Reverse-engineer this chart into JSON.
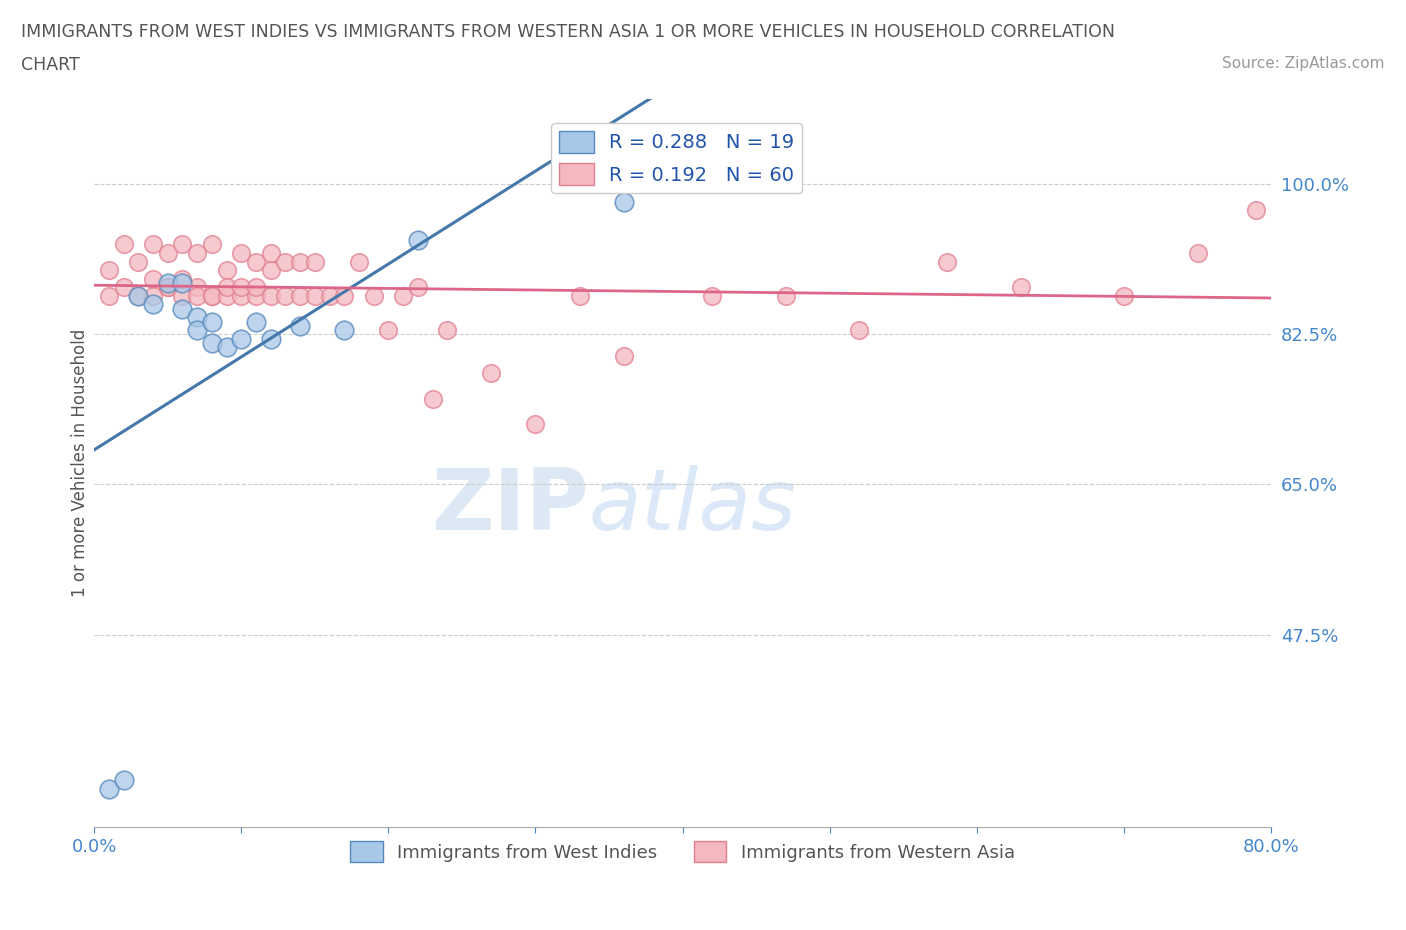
{
  "title_line1": "IMMIGRANTS FROM WEST INDIES VS IMMIGRANTS FROM WESTERN ASIA 1 OR MORE VEHICLES IN HOUSEHOLD CORRELATION",
  "title_line2": "CHART",
  "source": "Source: ZipAtlas.com",
  "ylabel": "1 or more Vehicles in Household",
  "xlim": [
    0.0,
    0.8
  ],
  "ylim": [
    0.25,
    1.1
  ],
  "xticks": [
    0.0,
    0.1,
    0.2,
    0.3,
    0.4,
    0.5,
    0.6,
    0.7,
    0.8
  ],
  "xticklabels": [
    "0.0%",
    "",
    "",
    "",
    "",
    "",
    "",
    "",
    "80.0%"
  ],
  "ytick_values": [
    0.475,
    0.65,
    0.825,
    1.0
  ],
  "ytick_labels": [
    "47.5%",
    "65.0%",
    "82.5%",
    "100.0%"
  ],
  "grid_color": "#cccccc",
  "background_color": "#ffffff",
  "series": [
    {
      "name": "Immigrants from West Indies",
      "color": "#a8c8e8",
      "edge_color": "#5588bb",
      "line_color": "#4477aa",
      "R": 0.288,
      "N": 19,
      "x": [
        0.01,
        0.02,
        0.03,
        0.04,
        0.05,
        0.06,
        0.06,
        0.07,
        0.07,
        0.08,
        0.08,
        0.09,
        0.1,
        0.11,
        0.12,
        0.14,
        0.17,
        0.22,
        0.36
      ],
      "y": [
        0.295,
        0.305,
        0.87,
        0.86,
        0.885,
        0.885,
        0.855,
        0.845,
        0.83,
        0.84,
        0.815,
        0.81,
        0.82,
        0.84,
        0.82,
        0.835,
        0.83,
        0.935,
        0.98
      ]
    },
    {
      "name": "Immigrants from Western Asia",
      "color": "#f4b8c0",
      "edge_color": "#e08090",
      "line_color": "#dd6688",
      "R": 0.192,
      "N": 60,
      "x": [
        0.01,
        0.01,
        0.02,
        0.02,
        0.03,
        0.03,
        0.04,
        0.04,
        0.04,
        0.05,
        0.05,
        0.05,
        0.06,
        0.06,
        0.06,
        0.07,
        0.07,
        0.07,
        0.08,
        0.08,
        0.08,
        0.09,
        0.09,
        0.09,
        0.1,
        0.1,
        0.1,
        0.11,
        0.11,
        0.11,
        0.12,
        0.12,
        0.12,
        0.13,
        0.13,
        0.14,
        0.14,
        0.15,
        0.15,
        0.16,
        0.17,
        0.18,
        0.19,
        0.2,
        0.21,
        0.22,
        0.23,
        0.24,
        0.27,
        0.3,
        0.33,
        0.36,
        0.42,
        0.47,
        0.52,
        0.58,
        0.63,
        0.7,
        0.75,
        0.79
      ],
      "y": [
        0.87,
        0.9,
        0.88,
        0.93,
        0.87,
        0.91,
        0.89,
        0.93,
        0.87,
        0.88,
        0.92,
        0.88,
        0.87,
        0.93,
        0.89,
        0.88,
        0.92,
        0.87,
        0.87,
        0.93,
        0.87,
        0.87,
        0.9,
        0.88,
        0.92,
        0.87,
        0.88,
        0.87,
        0.91,
        0.88,
        0.9,
        0.87,
        0.92,
        0.87,
        0.91,
        0.87,
        0.91,
        0.87,
        0.91,
        0.87,
        0.87,
        0.91,
        0.87,
        0.83,
        0.87,
        0.88,
        0.75,
        0.83,
        0.78,
        0.72,
        0.87,
        0.8,
        0.87,
        0.87,
        0.83,
        0.91,
        0.88,
        0.87,
        0.92,
        0.97
      ]
    }
  ],
  "legend_color": "#2255aa",
  "title_color": "#555555",
  "axis_label_color": "#555555",
  "tick_label_color": "#4488cc",
  "source_color": "#999999"
}
